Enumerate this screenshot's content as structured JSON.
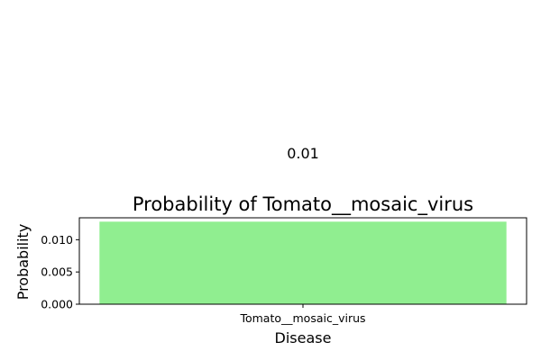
{
  "chart_data": {
    "type": "bar",
    "title": "Probability of Tomato__mosaic_virus",
    "xlabel": "Disease",
    "ylabel": "Probability",
    "categories": [
      "Tomato__mosaic_virus"
    ],
    "values": [
      0.0128
    ],
    "value_label": "0.01",
    "ylim": [
      0,
      0.0134
    ],
    "yticks": [
      0.0,
      0.005,
      0.01
    ],
    "ytick_labels": [
      "0.000",
      "0.005",
      "0.010"
    ],
    "bar_color": "#90ee90",
    "grid": false,
    "legend": false
  }
}
